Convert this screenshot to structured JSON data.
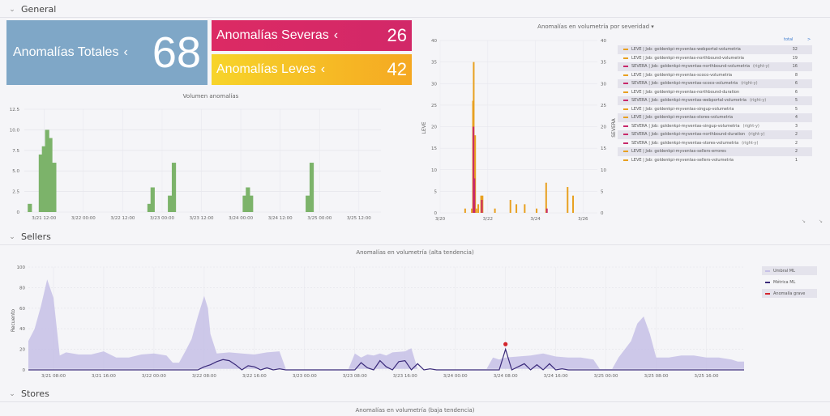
{
  "sections": {
    "general": "General",
    "sellers": "Sellers",
    "stores": "Stores"
  },
  "stats": {
    "total": {
      "label": "Anomalías Totales",
      "value": "68",
      "color": "#7fa7c7"
    },
    "severe": {
      "label": "Anomalías Severas",
      "value": "26",
      "color": "#dc2a64"
    },
    "mild": {
      "label": "Anomalías Leves",
      "value": "42",
      "color": "#f5b52a"
    }
  },
  "icons": {
    "section_toggle": "chevron-down-icon",
    "stat_drill": "chevron-left-icon",
    "panel_resize": "resize-corner-icon"
  },
  "volumen": {
    "title": "Volumen anomalías",
    "yticks": [
      "0",
      "2.5",
      "5.0",
      "7.5",
      "10.0",
      "12.5"
    ],
    "xticks": [
      {
        "label": "3/21 12:00",
        "t": 1.5
      },
      {
        "label": "3/22 00:00",
        "t": 2.0
      },
      {
        "label": "3/22 12:00",
        "t": 2.5
      },
      {
        "label": "3/23 00:00",
        "t": 3.0
      },
      {
        "label": "3/23 12:00",
        "t": 3.5
      },
      {
        "label": "3/24 00:00",
        "t": 4.0
      },
      {
        "label": "3/24 12:00",
        "t": 4.5
      },
      {
        "label": "3/25 00:00",
        "t": 5.0
      },
      {
        "label": "3/25 12:00",
        "t": 5.5
      }
    ],
    "color": "#7cb36a"
  },
  "severidad": {
    "title": "Anomalías en volumetría por severidad",
    "menu_icon": "caret-down-icon",
    "ylabel_left": "LEVE",
    "ylabel_right": "SEVERA",
    "yticks_left": [
      "0",
      "5",
      "10",
      "15",
      "20",
      "25",
      "30",
      "35",
      "40"
    ],
    "yticks_right": [
      "0",
      "5",
      "10",
      "15",
      "20",
      "25",
      "30",
      "35",
      "40"
    ],
    "xticks": [
      {
        "label": "3/20",
        "d": 0
      },
      {
        "label": "3/22",
        "d": 2
      },
      {
        "label": "3/24",
        "d": 4
      },
      {
        "label": "3/26",
        "d": 6
      }
    ],
    "colors": {
      "leve": "#e8a020",
      "severa": "#c8286a"
    }
  },
  "legend": {
    "total_label": "total",
    "arrow_label": ">",
    "right_axis_label": "(right-y)",
    "items": [
      {
        "name": "LEVE | Job: goldenkpi-myventas-webportal-volumetria",
        "right": false,
        "count": "32",
        "color": "#e8a020"
      },
      {
        "name": "LEVE | Job: goldenkpi-myventas-northbound-volumetria",
        "right": false,
        "count": "19",
        "color": "#e8a020"
      },
      {
        "name": "SEVERA | Job: goldenkpi-myventas-northbound-volumetria",
        "right": true,
        "count": "16",
        "color": "#c8286a"
      },
      {
        "name": "LEVE | Job: goldenkpi-myventas-scoco-volumetria",
        "right": false,
        "count": "8",
        "color": "#e8a020"
      },
      {
        "name": "SEVERA | Job: goldenkpi-myventas-scoco-volumetria",
        "right": true,
        "count": "6",
        "color": "#c8286a"
      },
      {
        "name": "LEVE | Job: goldenkpi-myventas-northbound-duration",
        "right": false,
        "count": "6",
        "color": "#e8a020"
      },
      {
        "name": "SEVERA | Job: goldenkpi-myventas-webportal-volumetria",
        "right": true,
        "count": "5",
        "color": "#c8286a"
      },
      {
        "name": "LEVE | Job: goldenkpi-myventas-singup-volumetria",
        "right": false,
        "count": "5",
        "color": "#e8a020"
      },
      {
        "name": "LEVE | Job: goldenkpi-myventas-stores-volumetria",
        "right": false,
        "count": "4",
        "color": "#e8a020"
      },
      {
        "name": "SEVERA | Job: goldenkpi-myventas-singup-volumetria",
        "right": true,
        "count": "3",
        "color": "#c8286a"
      },
      {
        "name": "SEVERA | Job: goldenkpi-myventas-northbound-duration",
        "right": true,
        "count": "2",
        "color": "#c8286a"
      },
      {
        "name": "SEVERA | Job: goldenkpi-myventas-stores-volumetria",
        "right": true,
        "count": "2",
        "color": "#c8286a"
      },
      {
        "name": "LEVE | Job: goldenkpi-myventas-sellers-errores",
        "right": false,
        "count": "2",
        "color": "#e8a020"
      },
      {
        "name": "LEVE | Job: goldenkpi-myventas-sellers-volumetria",
        "right": false,
        "count": "1",
        "color": "#e8a020"
      }
    ]
  },
  "sellers_chart": {
    "title": "Anomalías en volumetría (alta tendencia)",
    "ylabel": "Recuento",
    "yticks": [
      "0",
      "20",
      "40",
      "60",
      "80",
      "100"
    ],
    "xticks": [
      {
        "label": "3/21 08:00",
        "h": 32
      },
      {
        "label": "3/21 16:00",
        "h": 40
      },
      {
        "label": "3/22 00:00",
        "h": 48
      },
      {
        "label": "3/22 08:00",
        "h": 56
      },
      {
        "label": "3/22 16:00",
        "h": 64
      },
      {
        "label": "3/23 00:00",
        "h": 72
      },
      {
        "label": "3/23 08:00",
        "h": 80
      },
      {
        "label": "3/23 16:00",
        "h": 88
      },
      {
        "label": "3/24 00:00",
        "h": 96
      },
      {
        "label": "3/24 08:00",
        "h": 104
      },
      {
        "label": "3/24 16:00",
        "h": 112
      },
      {
        "label": "3/25 00:00",
        "h": 120
      },
      {
        "label": "3/25 08:00",
        "h": 128
      },
      {
        "label": "3/25 16:00",
        "h": 136
      }
    ],
    "legend": [
      {
        "name": "Umbral ML",
        "color": "#c5bfe6",
        "shaded": true
      },
      {
        "name": "Métrica ML",
        "color": "#3a2a7a",
        "shaded": false
      },
      {
        "name": "Anomalía grave",
        "color": "#d4252d",
        "shaded": true
      }
    ]
  },
  "stores_chart": {
    "title": "Anomalías en volumetría (baja tendencia)"
  },
  "chart_data": [
    {
      "type": "bar",
      "title": "Volumen anomalías",
      "ylim": [
        0,
        12.5
      ],
      "bars": [
        {
          "t": 1.32,
          "v": 1
        },
        {
          "t": 1.46,
          "v": 7
        },
        {
          "t": 1.5,
          "v": 8
        },
        {
          "t": 1.54,
          "v": 10
        },
        {
          "t": 1.58,
          "v": 9
        },
        {
          "t": 1.63,
          "v": 6
        },
        {
          "t": 2.84,
          "v": 1
        },
        {
          "t": 2.88,
          "v": 3
        },
        {
          "t": 3.1,
          "v": 2
        },
        {
          "t": 3.15,
          "v": 6
        },
        {
          "t": 4.05,
          "v": 2
        },
        {
          "t": 4.09,
          "v": 3
        },
        {
          "t": 4.13,
          "v": 2
        },
        {
          "t": 4.85,
          "v": 2
        },
        {
          "t": 4.9,
          "v": 6
        }
      ]
    },
    {
      "type": "bar",
      "title": "Anomalías en volumetría por severidad",
      "ylim": [
        0,
        40
      ],
      "series": [
        {
          "name": "LEVE",
          "bars": [
            {
              "d": 1.05,
              "v": 1
            },
            {
              "d": 1.33,
              "v": 1
            },
            {
              "d": 1.38,
              "v": 26
            },
            {
              "d": 1.41,
              "v": 35
            },
            {
              "d": 1.47,
              "v": 18
            },
            {
              "d": 1.52,
              "v": 1
            },
            {
              "d": 1.6,
              "v": 2
            },
            {
              "d": 1.72,
              "v": 4
            },
            {
              "d": 1.78,
              "v": 4
            },
            {
              "d": 2.3,
              "v": 1
            },
            {
              "d": 2.95,
              "v": 3
            },
            {
              "d": 3.2,
              "v": 2
            },
            {
              "d": 3.55,
              "v": 2
            },
            {
              "d": 4.05,
              "v": 1
            },
            {
              "d": 4.45,
              "v": 7
            },
            {
              "d": 5.35,
              "v": 6
            },
            {
              "d": 5.58,
              "v": 4
            }
          ]
        },
        {
          "name": "SEVERA",
          "bars": [
            {
              "d": 1.4,
              "v": 20
            },
            {
              "d": 1.44,
              "v": 8
            },
            {
              "d": 1.75,
              "v": 3
            },
            {
              "d": 4.48,
              "v": 1
            }
          ]
        }
      ]
    },
    {
      "type": "area",
      "title": "Anomalías en volumetría (alta tendencia)",
      "ylabel": "Recuento",
      "ylim": [
        0,
        100
      ],
      "series": [
        {
          "name": "Umbral ML",
          "upper": [
            [
              28,
              28
            ],
            [
              29,
              40
            ],
            [
              30,
              62
            ],
            [
              31,
              88
            ],
            [
              32,
              70
            ],
            [
              33,
              14
            ],
            [
              34,
              17
            ],
            [
              36,
              15
            ],
            [
              38,
              15
            ],
            [
              40,
              18
            ],
            [
              42,
              12
            ],
            [
              44,
              12
            ],
            [
              46,
              15
            ],
            [
              48,
              16
            ],
            [
              50,
              14
            ],
            [
              51,
              7
            ],
            [
              52,
              7
            ],
            [
              53,
              18
            ],
            [
              54,
              30
            ],
            [
              55,
              52
            ],
            [
              56,
              72
            ],
            [
              56.6,
              60
            ],
            [
              57,
              35
            ],
            [
              58,
              16
            ],
            [
              60,
              17
            ],
            [
              62,
              16
            ],
            [
              64,
              15
            ],
            [
              66,
              17
            ],
            [
              68,
              18
            ],
            [
              69,
              1
            ],
            [
              70,
              1
            ],
            [
              72,
              1
            ],
            [
              74,
              1
            ],
            [
              76,
              1
            ],
            [
              78,
              1
            ],
            [
              79,
              1
            ],
            [
              80,
              16
            ],
            [
              81,
              12
            ],
            [
              82,
              15
            ],
            [
              83,
              14
            ],
            [
              84,
              16
            ],
            [
              85,
              14
            ],
            [
              86,
              17
            ],
            [
              88,
              18
            ],
            [
              89,
              21
            ],
            [
              90,
              1
            ],
            [
              92,
              1
            ],
            [
              94,
              1
            ],
            [
              96,
              1
            ],
            [
              98,
              1
            ],
            [
              100,
              1
            ],
            [
              101,
              1
            ],
            [
              102,
              12
            ],
            [
              103,
              10
            ],
            [
              104,
              12
            ],
            [
              106,
              13
            ],
            [
              108,
              14
            ],
            [
              110,
              16
            ],
            [
              112,
              13
            ],
            [
              114,
              12
            ],
            [
              116,
              12
            ],
            [
              118,
              10
            ],
            [
              119,
              1
            ],
            [
              121,
              1
            ],
            [
              122,
              12
            ],
            [
              123,
              20
            ],
            [
              124,
              28
            ],
            [
              125,
              45
            ],
            [
              126,
              52
            ],
            [
              127,
              35
            ],
            [
              128,
              12
            ],
            [
              130,
              12
            ],
            [
              132,
              14
            ],
            [
              134,
              14
            ],
            [
              136,
              12
            ],
            [
              138,
              12
            ],
            [
              140,
              10
            ],
            [
              141,
              8
            ],
            [
              142,
              8
            ]
          ],
          "lower": [
            [
              28,
              1
            ],
            [
              32,
              1
            ],
            [
              36,
              1
            ],
            [
              40,
              1
            ],
            [
              44,
              1
            ],
            [
              48,
              1
            ],
            [
              52,
              1
            ],
            [
              56,
              1
            ],
            [
              60,
              1
            ],
            [
              64,
              1
            ],
            [
              68,
              1
            ],
            [
              72,
              1
            ],
            [
              76,
              1
            ],
            [
              80,
              1
            ],
            [
              84,
              1
            ],
            [
              88,
              1
            ],
            [
              92,
              1
            ],
            [
              96,
              1
            ],
            [
              100,
              1
            ],
            [
              104,
              1
            ],
            [
              108,
              1
            ],
            [
              112,
              1
            ],
            [
              116,
              1
            ],
            [
              120,
              1
            ],
            [
              124,
              1
            ],
            [
              128,
              1
            ],
            [
              132,
              1
            ],
            [
              136,
              1
            ],
            [
              140,
              1
            ],
            [
              142,
              1
            ]
          ]
        },
        {
          "name": "Métrica ML",
          "values": [
            [
              28,
              0
            ],
            [
              55,
              0
            ],
            [
              56,
              3
            ],
            [
              57,
              5
            ],
            [
              58,
              8
            ],
            [
              59,
              10
            ],
            [
              60,
              9
            ],
            [
              61,
              5
            ],
            [
              62,
              0
            ],
            [
              63,
              4
            ],
            [
              64,
              3
            ],
            [
              65,
              0
            ],
            [
              66,
              2
            ],
            [
              67,
              0
            ],
            [
              68,
              1
            ],
            [
              69,
              0
            ],
            [
              80,
              0
            ],
            [
              81,
              7
            ],
            [
              82,
              2
            ],
            [
              83,
              0
            ],
            [
              84,
              9
            ],
            [
              85,
              3
            ],
            [
              86,
              0
            ],
            [
              87,
              8
            ],
            [
              88,
              9
            ],
            [
              89,
              0
            ],
            [
              90,
              6
            ],
            [
              91,
              0
            ],
            [
              92,
              1
            ],
            [
              93,
              0
            ],
            [
              103,
              0
            ],
            [
              104,
              20
            ],
            [
              105,
              0
            ],
            [
              106,
              3
            ],
            [
              107,
              6
            ],
            [
              108,
              0
            ],
            [
              109,
              5
            ],
            [
              110,
              0
            ],
            [
              111,
              6
            ],
            [
              112,
              0
            ],
            [
              113,
              1
            ],
            [
              114,
              0
            ],
            [
              142,
              0
            ]
          ]
        },
        {
          "name": "Anomalía grave",
          "points": [
            [
              104,
              25
            ]
          ]
        }
      ]
    }
  ]
}
